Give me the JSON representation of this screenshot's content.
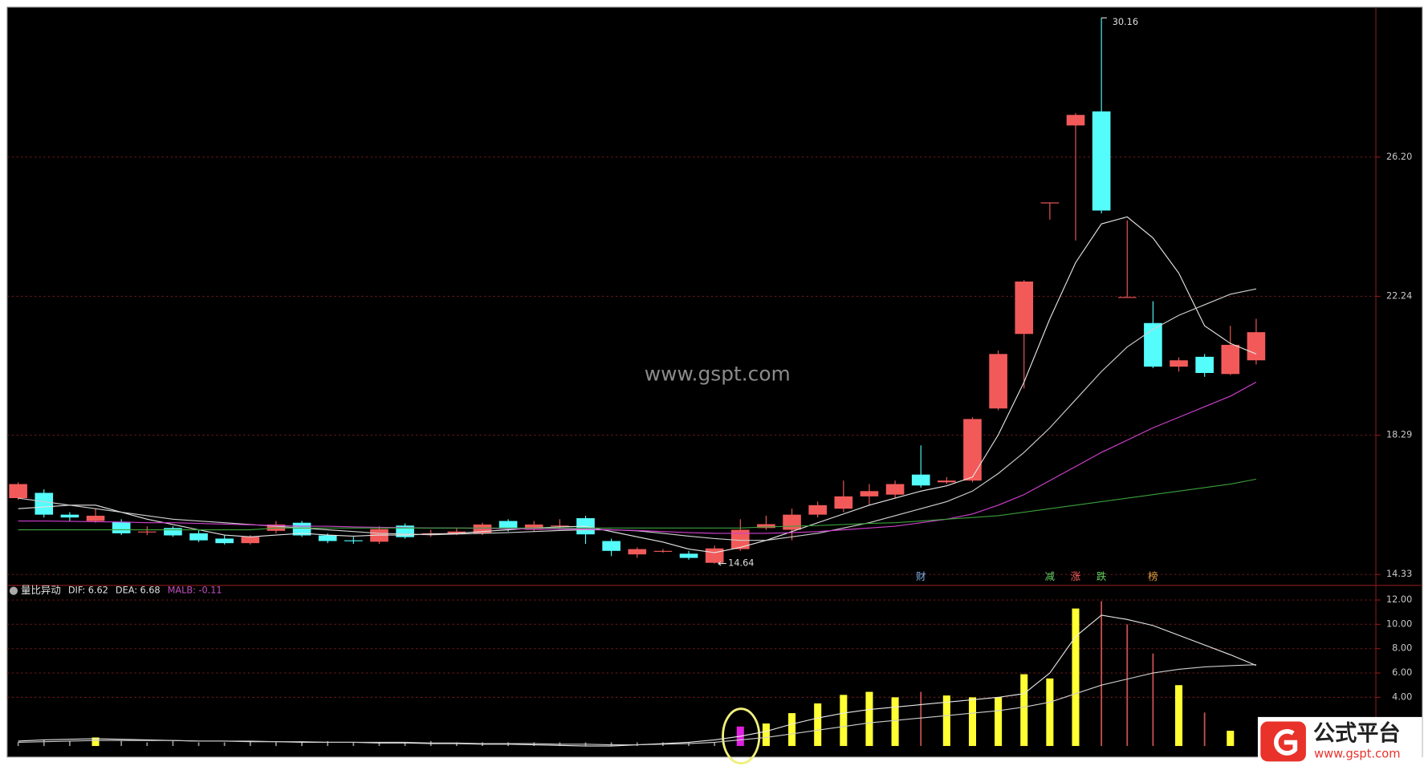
{
  "chart_data": [
    {
      "type": "candlestick",
      "open": [
        16.5,
        16.65,
        16.03,
        15.85,
        15.83,
        15.55,
        15.65,
        15.5,
        15.35,
        15.22,
        15.57,
        15.8,
        15.44,
        15.3,
        15.26,
        15.72,
        15.45,
        15.5,
        15.5,
        15.85,
        15.6,
        15.7,
        15.93,
        15.28,
        14.9,
        15.0,
        14.92,
        14.66,
        15.05,
        15.65,
        15.6,
        16.03,
        16.2,
        16.55,
        16.6,
        17.17,
        16.95,
        17.0,
        19.05,
        21.17,
        24.91,
        27.1,
        27.5,
        22.22,
        21.48,
        20.24,
        20.52,
        20.03,
        20.42
      ],
      "high": [
        16.95,
        16.75,
        16.1,
        16.2,
        15.9,
        15.7,
        15.7,
        15.6,
        15.45,
        15.45,
        15.85,
        15.85,
        15.5,
        15.4,
        15.7,
        15.78,
        15.6,
        15.65,
        15.8,
        15.9,
        15.85,
        15.9,
        16.0,
        15.35,
        15.1,
        15.05,
        15.0,
        15.15,
        15.9,
        16.0,
        16.2,
        16.4,
        17.0,
        16.9,
        17.0,
        18.0,
        17.1,
        18.8,
        20.7,
        22.7,
        24.91,
        27.45,
        30.16,
        24.4,
        22.1,
        20.5,
        20.6,
        21.4,
        21.6
      ],
      "low": [
        16.45,
        15.95,
        15.85,
        15.8,
        15.45,
        15.45,
        15.4,
        15.25,
        15.18,
        15.18,
        15.5,
        15.4,
        15.22,
        15.2,
        15.2,
        15.35,
        15.4,
        15.45,
        15.45,
        15.55,
        15.55,
        15.6,
        15.2,
        14.85,
        14.8,
        14.95,
        14.75,
        14.64,
        15.0,
        15.6,
        15.3,
        15.95,
        16.1,
        16.3,
        16.5,
        16.8,
        16.9,
        16.95,
        19.0,
        19.62,
        24.42,
        23.83,
        24.6,
        22.22,
        20.2,
        20.1,
        19.95,
        20.0,
        20.3
      ],
      "close": [
        16.9,
        16.03,
        15.95,
        16.0,
        15.5,
        15.55,
        15.44,
        15.3,
        15.22,
        15.4,
        15.75,
        15.44,
        15.28,
        15.28,
        15.62,
        15.39,
        15.5,
        15.55,
        15.75,
        15.62,
        15.75,
        15.72,
        15.47,
        15.0,
        15.05,
        15.0,
        14.8,
        15.07,
        15.6,
        15.76,
        16.03,
        16.3,
        16.55,
        16.7,
        16.9,
        16.86,
        17.0,
        18.75,
        20.6,
        22.66,
        24.91,
        27.4,
        24.68,
        22.22,
        20.24,
        20.42,
        20.06,
        20.86,
        21.22
      ],
      "up_color": "#f25a5a",
      "down_color": "#54fcfc",
      "ylim": [
        14.07,
        30.41
      ],
      "yticks": [
        14.33,
        18.29,
        22.24,
        {
          "value": 26.2,
          "label": "26.20"
        }
      ],
      "grid": true,
      "lines": [
        {
          "color": "#e4e4e4",
          "values": [
            16.2,
            16.25,
            16.3,
            16.3,
            16.1,
            15.9,
            15.75,
            15.6,
            15.45,
            15.4,
            15.45,
            15.5,
            15.45,
            15.42,
            15.45,
            15.45,
            15.48,
            15.5,
            15.55,
            15.6,
            15.65,
            15.68,
            15.7,
            15.55,
            15.4,
            15.25,
            15.05,
            14.95,
            15.1,
            15.3,
            15.55,
            15.8,
            16.05,
            16.3,
            16.5,
            16.7,
            16.85,
            17.1,
            18.3,
            19.8,
            21.6,
            23.2,
            24.3,
            24.5,
            23.9,
            22.9,
            21.4,
            20.9,
            20.6
          ]
        },
        {
          "color": "#d0d0d0",
          "values": [
            16.5,
            16.4,
            16.3,
            16.2,
            16.1,
            16.0,
            15.9,
            15.85,
            15.8,
            15.75,
            15.7,
            15.65,
            15.6,
            15.55,
            15.5,
            15.48,
            15.46,
            15.48,
            15.5,
            15.52,
            15.55,
            15.58,
            15.6,
            15.6,
            15.57,
            15.5,
            15.42,
            15.35,
            15.3,
            15.3,
            15.4,
            15.5,
            15.65,
            15.8,
            16.0,
            16.2,
            16.4,
            16.7,
            17.2,
            17.8,
            18.5,
            19.3,
            20.1,
            20.8,
            21.3,
            21.7,
            22.0,
            22.3,
            22.45
          ]
        },
        {
          "color": "#d040d0",
          "values": [
            15.85,
            15.85,
            15.84,
            15.83,
            15.82,
            15.8,
            15.8,
            15.78,
            15.76,
            15.74,
            15.72,
            15.7,
            15.7,
            15.68,
            15.67,
            15.66,
            15.65,
            15.65,
            15.64,
            15.63,
            15.62,
            15.62,
            15.62,
            15.6,
            15.58,
            15.55,
            15.52,
            15.5,
            15.5,
            15.5,
            15.52,
            15.55,
            15.6,
            15.65,
            15.7,
            15.8,
            15.9,
            16.05,
            16.3,
            16.6,
            17.0,
            17.4,
            17.8,
            18.15,
            18.5,
            18.8,
            19.1,
            19.4,
            19.8
          ]
        },
        {
          "color": "#3aa03a",
          "values": [
            15.6,
            15.6,
            15.6,
            15.6,
            15.6,
            15.6,
            15.6,
            15.6,
            15.6,
            15.6,
            15.65,
            15.65,
            15.65,
            15.65,
            15.65,
            15.65,
            15.65,
            15.65,
            15.65,
            15.65,
            15.65,
            15.65,
            15.65,
            15.65,
            15.65,
            15.65,
            15.65,
            15.65,
            15.65,
            15.68,
            15.7,
            15.72,
            15.75,
            15.78,
            15.8,
            15.85,
            15.9,
            15.95,
            16.0,
            16.1,
            16.2,
            16.3,
            16.4,
            16.5,
            16.6,
            16.7,
            16.8,
            16.9,
            17.04
          ]
        }
      ],
      "max_label": 30.16,
      "min_label": 14.64,
      "signals": [
        {
          "index": 35,
          "text": "财",
          "color": "#7fb0e8"
        },
        {
          "index": 40,
          "text": "减",
          "color": "#66cc66"
        },
        {
          "index": 41,
          "text": "涨",
          "color": "#ff6060"
        },
        {
          "index": 42,
          "text": "跌",
          "color": "#60d060"
        },
        {
          "index": 44,
          "text": "榜",
          "color": "#e8a040"
        }
      ],
      "watermark": "www.gspt.com"
    },
    {
      "type": "bar",
      "title": "量比异动",
      "indicators": [
        {
          "label": "DIF:",
          "value": 6.62,
          "color": "#e0e0e0"
        },
        {
          "label": "DEA:",
          "value": 6.68,
          "color": "#e0e0e0"
        },
        {
          "label": "MALB:",
          "value": -0.11,
          "color": "#c050c0"
        }
      ],
      "values": [
        0.3,
        0.5,
        0.4,
        0.7,
        0.4,
        0.3,
        0.4,
        0.3,
        0.3,
        0.4,
        0.3,
        0.3,
        0.4,
        0.3,
        0.3,
        0.3,
        0.4,
        0.3,
        0.3,
        0.3,
        0.3,
        0.3,
        0.3,
        0.3,
        0.3,
        0.3,
        0.3,
        0.3,
        1.6,
        1.85,
        2.7,
        3.5,
        4.2,
        4.45,
        4.0,
        4.45,
        4.15,
        4.0,
        4.0,
        5.9,
        5.55,
        11.3,
        11.9,
        10.0,
        7.6,
        5.0,
        2.75,
        1.25,
        null
      ],
      "kinds": [
        "w",
        "w",
        "w",
        "y",
        "w",
        "w",
        "w",
        "w",
        "w",
        "w",
        "w",
        "w",
        "w",
        "w",
        "w",
        "w",
        "w",
        "w",
        "w",
        "w",
        "w",
        "w",
        "w",
        "w",
        "w",
        "w",
        "w",
        "w",
        "m",
        "y",
        "y",
        "y",
        "y",
        "y",
        "y",
        "r",
        "y",
        "y",
        "y",
        "y",
        "y",
        "y",
        "r",
        "r",
        "r",
        "y",
        "r",
        "y",
        "y"
      ],
      "kind_colors": {
        "w": "#909090",
        "y": "#ffff33",
        "r": "#c85050",
        "m": "#e020e0"
      },
      "lines": [
        {
          "color": "#e8e8e8",
          "values": [
            0.4,
            0.5,
            0.55,
            0.6,
            0.55,
            0.5,
            0.45,
            0.4,
            0.4,
            0.35,
            0.35,
            0.3,
            0.3,
            0.3,
            0.25,
            0.25,
            0.2,
            0.2,
            0.15,
            0.15,
            0.1,
            0.05,
            0.0,
            0.0,
            0.1,
            0.2,
            0.3,
            0.5,
            0.8,
            1.2,
            1.8,
            2.3,
            2.7,
            3.0,
            3.2,
            3.4,
            3.6,
            3.8,
            4.0,
            4.3,
            6.0,
            9.0,
            10.75,
            10.4,
            9.9,
            9.1,
            8.3,
            7.5,
            6.62
          ]
        },
        {
          "color": "#cccccc",
          "values": [
            0.3,
            0.35,
            0.4,
            0.45,
            0.45,
            0.45,
            0.45,
            0.4,
            0.4,
            0.4,
            0.35,
            0.35,
            0.3,
            0.3,
            0.3,
            0.3,
            0.25,
            0.25,
            0.2,
            0.2,
            0.2,
            0.15,
            0.15,
            0.1,
            0.1,
            0.15,
            0.2,
            0.3,
            0.5,
            0.7,
            1.0,
            1.3,
            1.6,
            1.9,
            2.1,
            2.3,
            2.5,
            2.7,
            2.9,
            3.2,
            3.6,
            4.3,
            5.0,
            5.5,
            6.0,
            6.3,
            6.5,
            6.6,
            6.68
          ]
        }
      ],
      "ylim": [
        -0.75,
        13.2
      ],
      "yticks": [
        {
          "value": 4,
          "label": "4.00"
        },
        {
          "value": 6,
          "label": "6.00"
        },
        {
          "value": 8,
          "label": "8.00"
        },
        {
          "value": 10,
          "label": "10.00"
        },
        {
          "value": 12,
          "label": "12.00"
        }
      ],
      "grid": true
    }
  ],
  "logo": {
    "name": "公式平台",
    "url": "www.gspt.com"
  }
}
